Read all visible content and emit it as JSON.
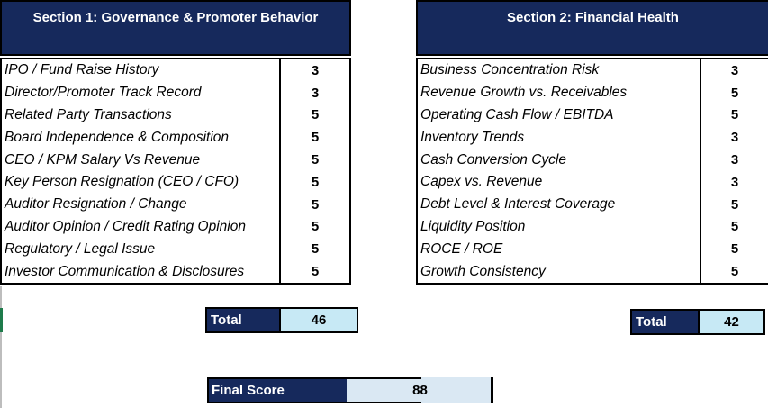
{
  "section1": {
    "title": "Section 1: Governance & Promoter Behavior",
    "rows": [
      {
        "label": "IPO / Fund Raise History",
        "score": "3"
      },
      {
        "label": "Director/Promoter Track Record",
        "score": "3"
      },
      {
        "label": "Related Party Transactions",
        "score": "5"
      },
      {
        "label": "Board Independence & Composition",
        "score": "5"
      },
      {
        "label": "CEO / KPM Salary  Vs Revenue",
        "score": "5"
      },
      {
        "label": "Key Person Resignation (CEO / CFO)",
        "score": "5"
      },
      {
        "label": "Auditor Resignation / Change",
        "score": "5"
      },
      {
        "label": "Auditor Opinion / Credit Rating Opinion",
        "score": "5"
      },
      {
        "label": "Regulatory / Legal Issue",
        "score": "5"
      },
      {
        "label": "Investor Communication & Disclosures",
        "score": "5"
      }
    ],
    "total_label": "Total",
    "total_value": "46"
  },
  "section2": {
    "title": "Section 2: Financial Health",
    "rows": [
      {
        "label": "Business Concentration Risk",
        "score": "3"
      },
      {
        "label": "Revenue Growth vs. Receivables",
        "score": "5"
      },
      {
        "label": "Operating Cash Flow / EBITDA",
        "score": "5"
      },
      {
        "label": "Inventory Trends",
        "score": "3"
      },
      {
        "label": "Cash Conversion Cycle",
        "score": "3"
      },
      {
        "label": "Capex vs. Revenue",
        "score": "3"
      },
      {
        "label": "Debt Level & Interest Coverage",
        "score": "5"
      },
      {
        "label": "Liquidity Position",
        "score": "5"
      },
      {
        "label": "ROCE / ROE",
        "score": "5"
      },
      {
        "label": "Growth Consistency",
        "score": "5"
      }
    ],
    "total_label": "Total",
    "total_value": "42"
  },
  "final": {
    "label": "Final Score",
    "value": "88"
  },
  "colors": {
    "navy": "#16295C",
    "cyan": "#C7E9F5",
    "final_blue": "#DAE8F3",
    "green": "#1E7B4B",
    "border": "#000000"
  }
}
